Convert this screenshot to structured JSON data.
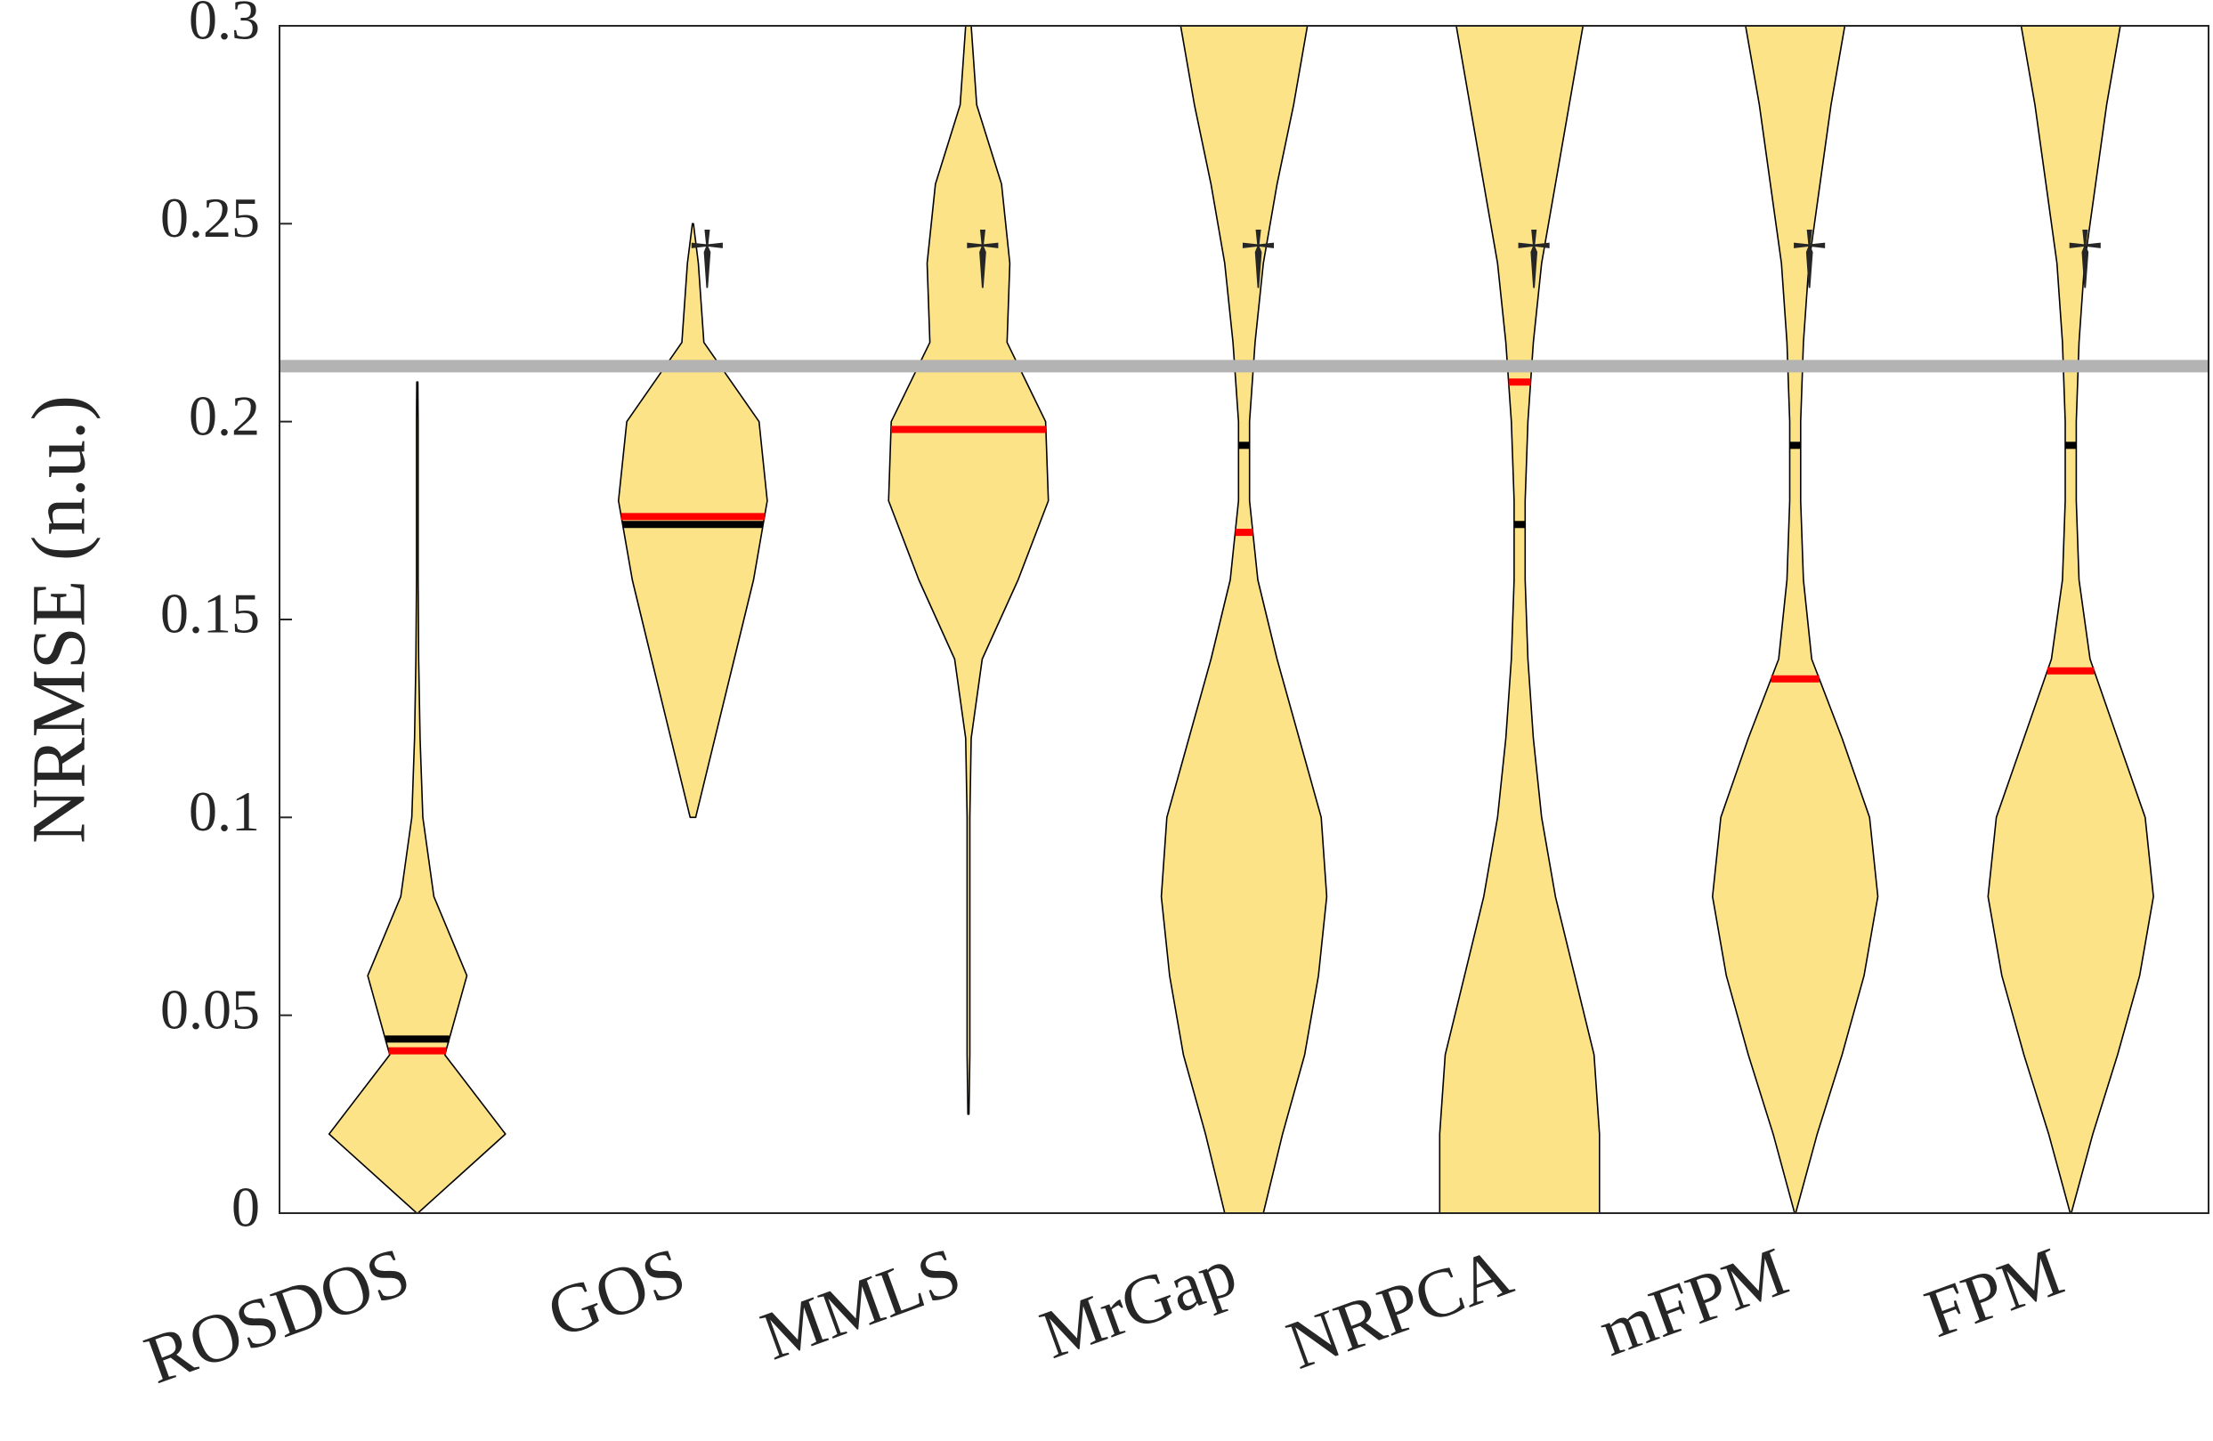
{
  "chart_data": {
    "type": "violin",
    "ylabel": "NRMSE (n.u.)",
    "categories": [
      "ROSDOS",
      "GOS",
      "MMLS",
      "MrGap",
      "NRPCA",
      "mFPM",
      "FPM"
    ],
    "ylim": [
      0,
      0.3
    ],
    "yticks": [
      0,
      0.05,
      0.1,
      0.15,
      0.2,
      0.25,
      0.3
    ],
    "levels": [
      0,
      0.02,
      0.04,
      0.06,
      0.08,
      0.1,
      0.12,
      0.14,
      0.16,
      0.18,
      0.2,
      0.22,
      0.24,
      0.26,
      0.28,
      0.3
    ],
    "fill_color": "#fce388",
    "median_color": "#000000",
    "mean_color": "#ff0000",
    "reference_line": {
      "value": 0.214,
      "color": "#b3b3b3"
    },
    "violins": [
      {
        "density": [
          0,
          32,
          10,
          18,
          6,
          2,
          1,
          0.5,
          0.3,
          0.3,
          0.3,
          null,
          null,
          null,
          null,
          null
        ],
        "max": 0.21,
        "median": 0.044,
        "mean": 0.041
      },
      {
        "density": [
          null,
          null,
          null,
          null,
          null,
          1,
          8,
          15,
          22,
          27,
          24,
          4,
          2,
          null,
          null,
          null
        ],
        "min": 0.1,
        "max": 0.25,
        "median": 0.174,
        "mean": 0.176,
        "annotation": "†",
        "annotation_y": 0.24
      },
      {
        "density": [
          null,
          null,
          0.5,
          0.5,
          0.5,
          0.5,
          1,
          5,
          18,
          29,
          28,
          14,
          15,
          12,
          3,
          1
        ],
        "min": 0.025,
        "median": 0.198,
        "mean": 0.198,
        "annotation": "†",
        "annotation_y": 0.24
      },
      {
        "density": [
          7,
          14,
          22,
          27,
          30,
          28,
          20,
          12,
          5,
          2,
          2,
          4,
          7,
          12,
          18,
          23
        ],
        "median": 0.194,
        "mean": 0.172,
        "annotation": "†",
        "annotation_y": 0.24
      },
      {
        "density": [
          29,
          29,
          27,
          20,
          13,
          8,
          5,
          3,
          2,
          2,
          3,
          5,
          8,
          13,
          18,
          23
        ],
        "median": 0.174,
        "mean": 0.21,
        "annotation": "†",
        "annotation_y": 0.24
      },
      {
        "density": [
          0,
          8,
          17,
          25,
          30,
          27,
          17,
          6,
          3,
          2,
          2,
          3,
          5,
          9,
          13,
          18
        ],
        "median": 0.194,
        "mean": 0.135,
        "annotation": "†",
        "annotation_y": 0.24
      },
      {
        "density": [
          0,
          8,
          17,
          25,
          30,
          27,
          17,
          7,
          3,
          2,
          2,
          3,
          5,
          9,
          13,
          18
        ],
        "median": 0.194,
        "mean": 0.137,
        "annotation": "†",
        "annotation_y": 0.24
      }
    ]
  }
}
